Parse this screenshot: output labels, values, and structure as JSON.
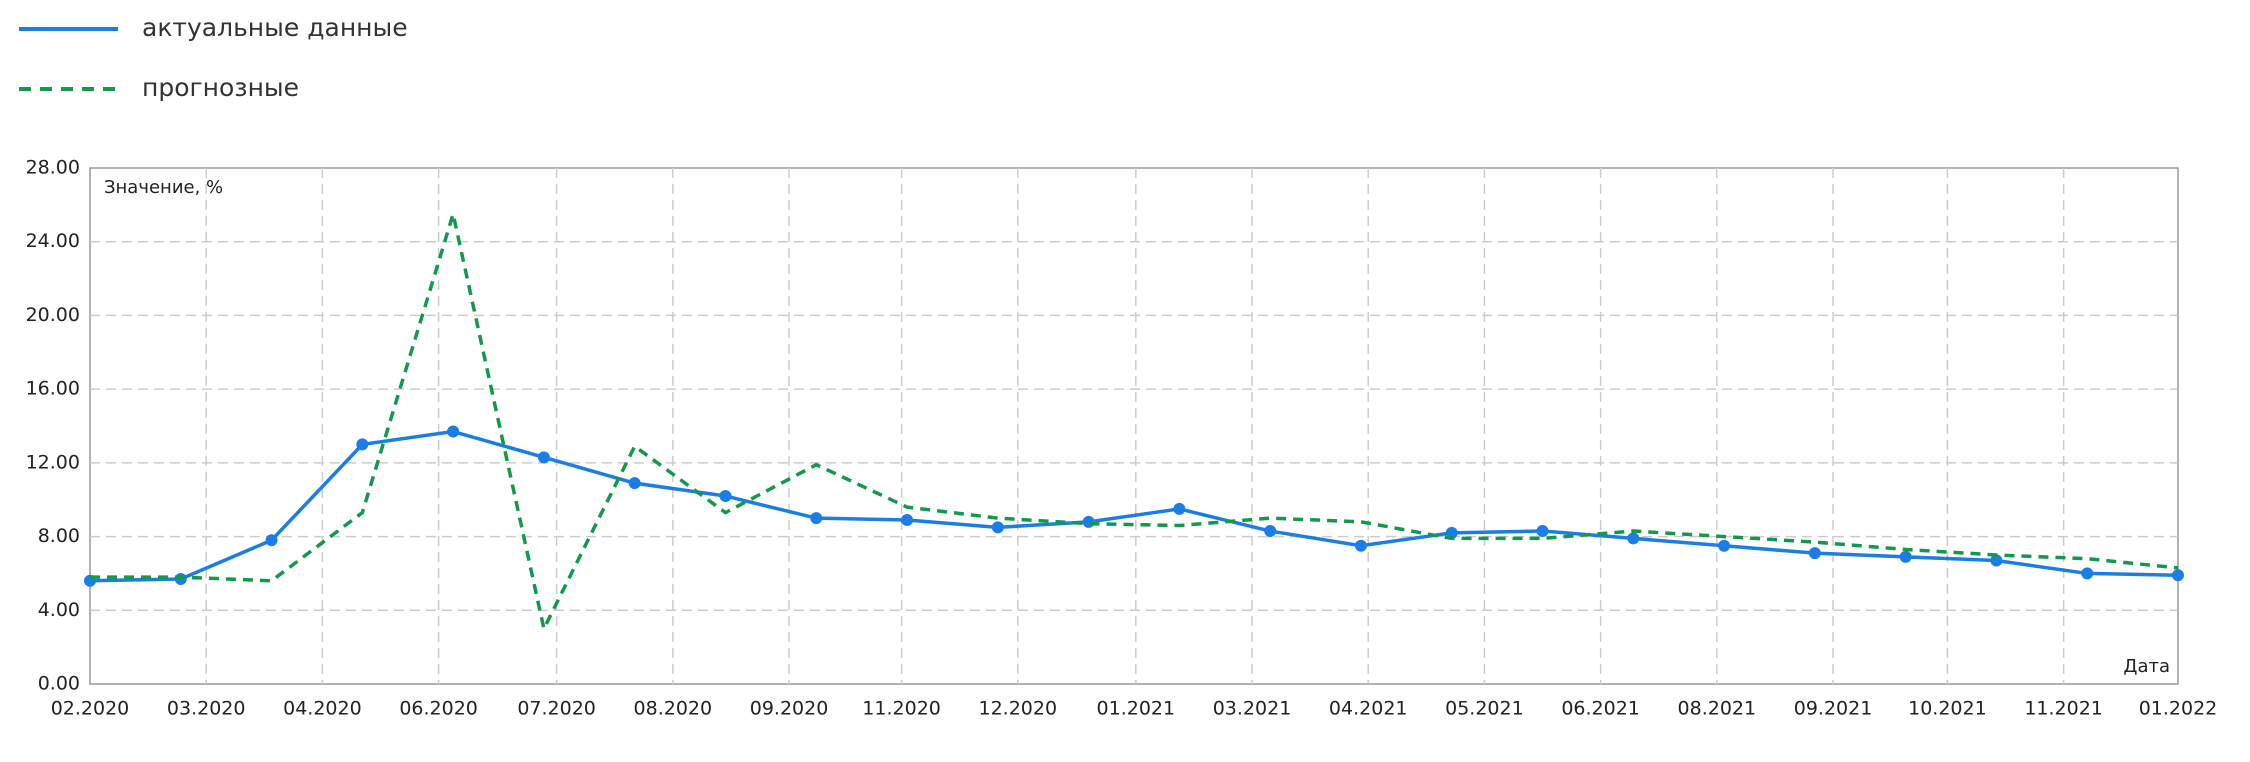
{
  "chart_data": {
    "type": "line",
    "x": [
      0,
      1,
      2,
      3,
      4,
      5,
      6,
      7,
      8,
      9,
      10,
      11,
      12,
      13,
      14,
      15,
      16,
      17,
      18,
      19,
      20,
      21,
      22,
      23
    ],
    "xlim": [
      0,
      23
    ],
    "xticks": [
      {
        "value": 0,
        "label": "02.2020"
      },
      {
        "value": 1.28,
        "label": "03.2020"
      },
      {
        "value": 2.56,
        "label": "04.2020"
      },
      {
        "value": 3.84,
        "label": "06.2020"
      },
      {
        "value": 5.14,
        "label": "07.2020"
      },
      {
        "value": 6.42,
        "label": "08.2020"
      },
      {
        "value": 7.7,
        "label": "09.2020"
      },
      {
        "value": 8.94,
        "label": "11.2020"
      },
      {
        "value": 10.22,
        "label": "12.2020"
      },
      {
        "value": 11.52,
        "label": "01.2021"
      },
      {
        "value": 12.8,
        "label": "03.2021"
      },
      {
        "value": 14.08,
        "label": "04.2021"
      },
      {
        "value": 15.36,
        "label": "05.2021"
      },
      {
        "value": 16.64,
        "label": "06.2021"
      },
      {
        "value": 17.92,
        "label": "08.2021"
      },
      {
        "value": 19.2,
        "label": "09.2021"
      },
      {
        "value": 20.46,
        "label": "10.2021"
      },
      {
        "value": 21.74,
        "label": "11.2021"
      },
      {
        "value": 23,
        "label": "01.2022"
      }
    ],
    "ylim": [
      0,
      28
    ],
    "yticks": [
      {
        "value": 0,
        "label": "0.00"
      },
      {
        "value": 4,
        "label": "4.00"
      },
      {
        "value": 8,
        "label": "8.00"
      },
      {
        "value": 12,
        "label": "12.00"
      },
      {
        "value": 16,
        "label": "16.00"
      },
      {
        "value": 20,
        "label": "20.00"
      },
      {
        "value": 24,
        "label": "24.00"
      },
      {
        "value": 28,
        "label": "28.00"
      }
    ],
    "y_label": "Значение, %",
    "x_label": "Дата",
    "grid": true,
    "series": [
      {
        "name": "актуальные данные",
        "color": "#1a7ee6",
        "dashed": false,
        "markers": true,
        "values": [
          5.6,
          5.7,
          7.8,
          13.0,
          13.7,
          12.3,
          10.9,
          10.2,
          9.0,
          8.9,
          8.5,
          8.8,
          9.5,
          8.3,
          7.5,
          8.2,
          8.3,
          7.9,
          7.5,
          7.1,
          6.9,
          6.7,
          6.0,
          5.9
        ]
      },
      {
        "name": "прогнозные",
        "color": "#12994a",
        "dashed": true,
        "markers": false,
        "values": [
          5.8,
          5.8,
          5.6,
          9.3,
          25.5,
          3.0,
          12.9,
          9.3,
          11.9,
          9.6,
          9.0,
          8.7,
          8.6,
          9.0,
          8.8,
          7.9,
          7.9,
          8.3,
          8.0,
          7.7,
          7.3,
          7.0,
          6.8,
          6.3
        ]
      }
    ]
  }
}
